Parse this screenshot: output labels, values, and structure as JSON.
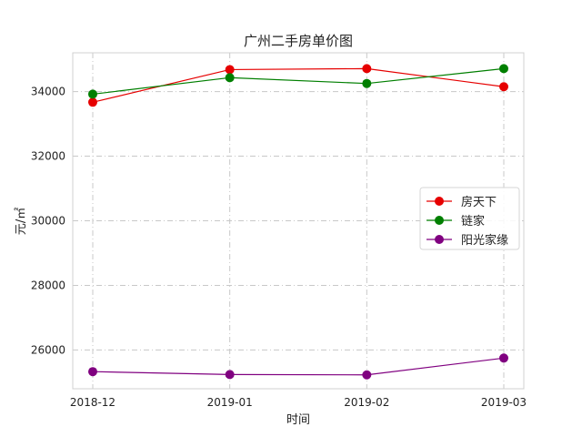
{
  "chart_data": {
    "type": "line",
    "title": "广州二手房单价图",
    "xlabel": "时间",
    "ylabel": "元/㎡",
    "categories": [
      "2018-12",
      "2019-01",
      "2019-02",
      "2019-03"
    ],
    "yticks": [
      26000,
      28000,
      30000,
      32000,
      34000
    ],
    "ylim": [
      24800,
      35200
    ],
    "grid": true,
    "legend_position": "center-right",
    "series": [
      {
        "name": "房天下",
        "color": "#e60000",
        "values": [
          33670,
          34680,
          34710,
          34150
        ]
      },
      {
        "name": "链家",
        "color": "#007f00",
        "values": [
          33920,
          34430,
          34250,
          34710
        ]
      },
      {
        "name": "阳光家缘",
        "color": "#800080",
        "values": [
          25330,
          25240,
          25230,
          25750
        ]
      }
    ]
  }
}
